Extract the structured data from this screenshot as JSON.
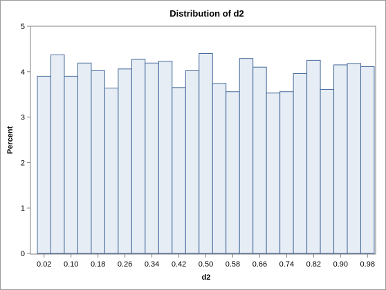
{
  "chart_data": {
    "type": "bar",
    "title": "Distribution of d2",
    "xlabel": "d2",
    "ylabel": "Percent",
    "ylim": [
      0,
      5
    ],
    "yticks": [
      "0",
      "1",
      "2",
      "3",
      "4",
      "5"
    ],
    "xlim": [
      0,
      1
    ],
    "bin_width": 0.04,
    "bin_midpoints": [
      0.02,
      0.06,
      0.1,
      0.14,
      0.18,
      0.22,
      0.26,
      0.3,
      0.34,
      0.38,
      0.42,
      0.46,
      0.5,
      0.54,
      0.58,
      0.62,
      0.66,
      0.7,
      0.74,
      0.78,
      0.82,
      0.86,
      0.9,
      0.94,
      0.98
    ],
    "xtick_labels": [
      "0.02",
      "0.10",
      "0.18",
      "0.26",
      "0.34",
      "0.42",
      "0.50",
      "0.58",
      "0.66",
      "0.74",
      "0.82",
      "0.90",
      "0.98"
    ],
    "values": [
      3.9,
      4.37,
      3.9,
      4.19,
      4.02,
      3.64,
      4.06,
      4.27,
      4.19,
      4.23,
      3.65,
      4.02,
      4.4,
      3.74,
      3.56,
      4.29,
      4.1,
      3.53,
      3.56,
      3.96,
      4.25,
      3.61,
      4.15,
      4.18,
      4.11
    ],
    "grid": false,
    "colors": {
      "bar_fill": "#e6edf5",
      "bar_stroke": "#44689a",
      "axis": "#808080"
    }
  }
}
